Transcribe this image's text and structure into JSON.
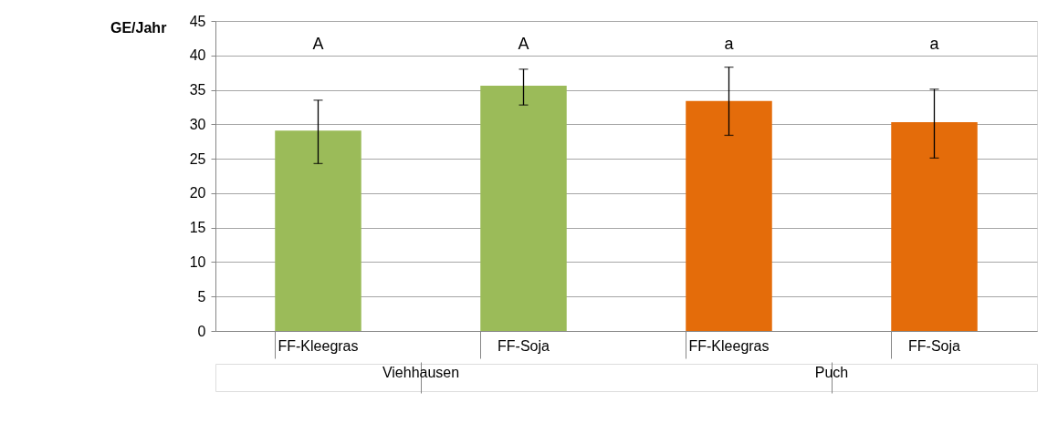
{
  "chart_data": {
    "type": "bar",
    "ylabel": "GE/Jahr",
    "categories": [
      "FF-Kleegras",
      "FF-Soja",
      "FF-Kleegras",
      "FF-Soja"
    ],
    "values": [
      29.1,
      35.6,
      33.4,
      30.3
    ],
    "colors": [
      "#9bbb59",
      "#9bbb59",
      "#e46c0a",
      "#e46c0a"
    ],
    "errors": [
      [
        24.3,
        33.5
      ],
      [
        32.8,
        38.0
      ],
      [
        28.4,
        38.3
      ],
      [
        25.1,
        35.1
      ]
    ],
    "ylim": [
      0,
      45
    ],
    "yticks": [
      0,
      5,
      10,
      15,
      20,
      25,
      30,
      35,
      40,
      45
    ],
    "grid": "y",
    "annotations": [
      "A",
      "A",
      "a",
      "a",
      "Viehhausen",
      "Puch"
    ]
  }
}
